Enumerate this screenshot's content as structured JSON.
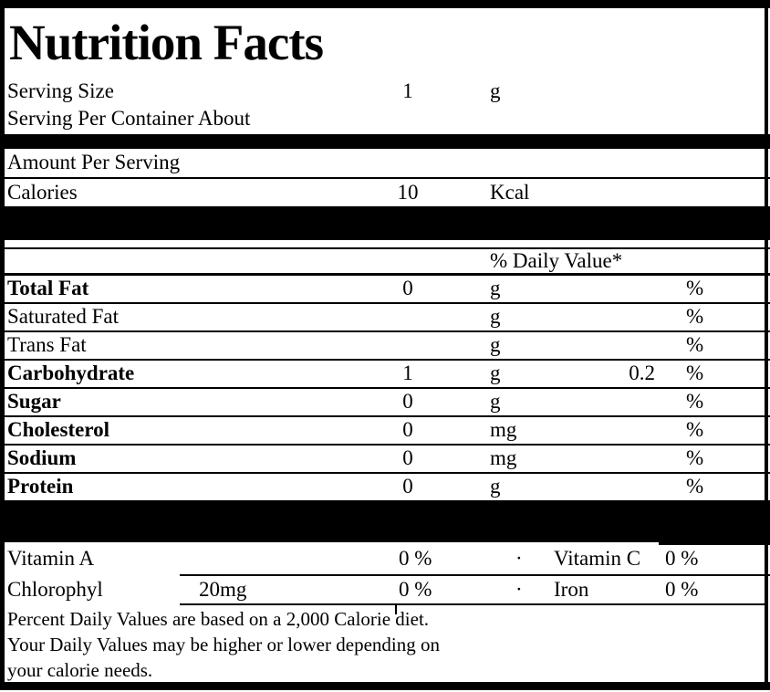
{
  "title": "Nutrition Facts",
  "serving": {
    "size_label": "Serving Size",
    "size_value": "1",
    "size_unit": "g",
    "per_container_label": "Serving Per Container About"
  },
  "amount_per_serving_label": "Amount Per Serving",
  "calories": {
    "label": "Calories",
    "value": "10",
    "unit": "Kcal"
  },
  "daily_value_header": "% Daily Value*",
  "nutrients": [
    {
      "label": "Total Fat",
      "bold": true,
      "amount": "0",
      "unit": "g",
      "dv": "",
      "pct": "%"
    },
    {
      "label": "Saturated Fat",
      "bold": false,
      "amount": "",
      "unit": "g",
      "dv": "",
      "pct": "%"
    },
    {
      "label": "Trans Fat",
      "bold": false,
      "amount": "",
      "unit": "g",
      "dv": "",
      "pct": "%"
    },
    {
      "label": "Carbohydrate",
      "bold": true,
      "amount": "1",
      "unit": "g",
      "dv": "0.2",
      "pct": "%"
    },
    {
      "label": "Sugar",
      "bold": true,
      "amount": "0",
      "unit": "g",
      "dv": "",
      "pct": "%"
    },
    {
      "label": "Cholesterol",
      "bold": true,
      "amount": "0",
      "unit": "mg",
      "dv": "",
      "pct": "%"
    },
    {
      "label": "Sodium",
      "bold": true,
      "amount": "0",
      "unit": "mg",
      "dv": "",
      "pct": "%"
    },
    {
      "label": "Protein",
      "bold": true,
      "amount": "0",
      "unit": "g",
      "dv": "",
      "pct": "%"
    }
  ],
  "vitamins": [
    {
      "label": "Vitamin A",
      "amount": "",
      "value": "0 %",
      "separator": "·",
      "label2": "Vitamin C",
      "value2": "0 %"
    },
    {
      "label": "Chlorophyl",
      "amount": "20mg",
      "value": "0 %",
      "separator": "·",
      "label2": "Iron",
      "value2": "0 %"
    }
  ],
  "footnote": {
    "line1": "Percent Daily Values are based on a 2,000 Calorie diet.",
    "line2": "Your Daily Values may be higher or lower depending on",
    "line3": "your calorie needs."
  },
  "colors": {
    "border": "#000000",
    "background": "#ffffff",
    "text": "#000000"
  }
}
